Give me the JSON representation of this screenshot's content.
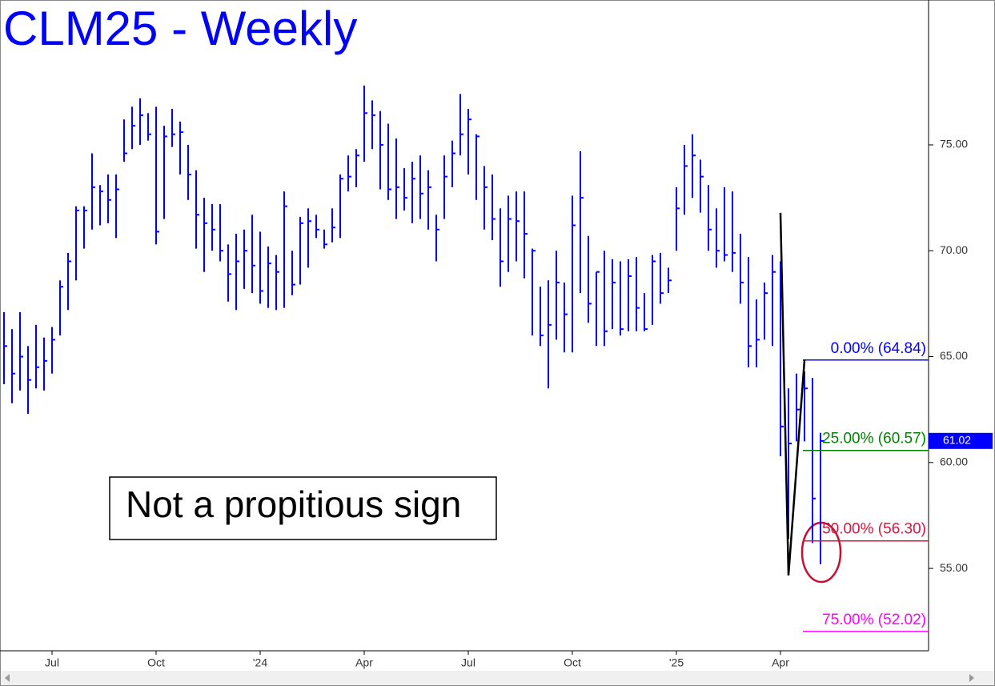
{
  "chart_data": {
    "type": "ohlc",
    "title": "CLM25 - Weekly",
    "annotation": "Not a propitious sign",
    "color": "#0000ff",
    "xlim": [
      -0.5,
      115.5
    ],
    "xticks": [
      {
        "value": 6,
        "label": "Jul"
      },
      {
        "value": 19,
        "label": "Oct"
      },
      {
        "value": 32,
        "label": "'24"
      },
      {
        "value": 45,
        "label": "Apr"
      },
      {
        "value": 58,
        "label": "Jul"
      },
      {
        "value": 71,
        "label": "Oct"
      },
      {
        "value": 84,
        "label": "'25"
      },
      {
        "value": 97,
        "label": "Apr"
      }
    ],
    "ylim": [
      51.11,
      81.84
    ],
    "yticks": [
      {
        "value": 55,
        "label": "55.00"
      },
      {
        "value": 60,
        "label": "60.00"
      },
      {
        "value": 65,
        "label": "65.00"
      },
      {
        "value": 70,
        "label": "70.00"
      },
      {
        "value": 75,
        "label": "75.00"
      }
    ],
    "high": [
      67.1,
      66.3,
      67.1,
      65.5,
      66.5,
      65.9,
      66.4,
      68.6,
      69.9,
      72.1,
      72.1,
      74.6,
      73.1,
      73.6,
      73.6,
      76.2,
      76.8,
      77.2,
      76.5,
      76.8,
      75.9,
      76.7,
      76.1,
      75.0,
      73.8,
      72.5,
      72.2,
      72.2,
      70.3,
      70.8,
      71.0,
      71.7,
      70.9,
      70.2,
      69.8,
      72.8,
      70.0,
      71.6,
      72.0,
      71.7,
      71.0,
      72.0,
      73.6,
      74.5,
      74.8,
      77.8,
      77.1,
      76.6,
      76.0,
      75.3,
      73.9,
      74.2,
      74.5,
      73.8,
      71.7,
      74.5,
      75.2,
      77.4,
      76.7,
      75.5,
      74.0,
      73.6,
      72.0,
      72.6,
      72.8,
      72.8,
      70.1,
      68.3,
      68.6,
      70.0,
      68.5,
      72.6,
      74.7,
      70.7,
      69.0,
      70.0,
      69.6,
      69.5,
      69.6,
      69.7,
      68.0,
      69.8,
      69.9,
      69.2,
      73.0,
      75.0,
      75.5,
      74.3,
      73.1,
      72.0,
      73.0,
      72.8,
      70.8,
      69.7,
      67.7,
      68.5,
      69.8,
      69.5,
      63.5,
      64.2,
      64.3,
      64.0,
      61.4
    ],
    "low": [
      63.7,
      62.8,
      63.4,
      62.3,
      63.5,
      63.4,
      64.2,
      66.0,
      67.2,
      68.6,
      70.1,
      71.0,
      71.2,
      71.3,
      70.6,
      74.2,
      74.8,
      75.0,
      75.2,
      70.3,
      71.5,
      74.9,
      73.6,
      72.4,
      70.1,
      69.0,
      70.0,
      69.5,
      67.6,
      67.2,
      68.2,
      68.0,
      67.5,
      67.3,
      67.2,
      67.3,
      67.9,
      68.4,
      69.2,
      70.6,
      70.1,
      70.4,
      70.6,
      72.8,
      73.0,
      74.2,
      74.8,
      72.9,
      72.4,
      71.5,
      71.9,
      71.3,
      71.5,
      71.0,
      69.5,
      71.5,
      73.0,
      74.5,
      73.6,
      72.4,
      71.0,
      70.5,
      68.3,
      69.0,
      69.5,
      68.7,
      66.0,
      65.5,
      63.5,
      65.8,
      65.2,
      65.2,
      68.0,
      66.6,
      65.5,
      65.5,
      66.3,
      66.0,
      66.2,
      66.2,
      66.2,
      66.5,
      67.5,
      68.0,
      70.0,
      71.7,
      72.5,
      71.8,
      70.0,
      69.2,
      69.5,
      69.0,
      67.5,
      64.5,
      64.5,
      65.8,
      65.5,
      60.3,
      56.4,
      61.0,
      61.0,
      56.2,
      55.2
    ],
    "close": [
      65.5,
      64.2,
      65.0,
      63.9,
      64.5,
      64.8,
      65.8,
      68.3,
      69.5,
      71.9,
      71.9,
      73.0,
      72.8,
      72.4,
      72.9,
      74.6,
      75.9,
      76.4,
      75.5,
      70.9,
      75.4,
      75.5,
      75.6,
      73.6,
      71.7,
      71.3,
      71.0,
      70.0,
      68.9,
      69.5,
      70.0,
      69.3,
      68.1,
      69.4,
      69.0,
      72.1,
      68.4,
      71.3,
      71.4,
      71.0,
      70.3,
      71.1,
      73.4,
      73.5,
      74.5,
      76.5,
      76.4,
      75.0,
      72.9,
      73.0,
      72.5,
      73.4,
      72.7,
      73.0,
      71.0,
      73.5,
      74.6,
      75.5,
      76.2,
      75.4,
      73.0,
      71.5,
      69.5,
      71.5,
      71.4,
      70.8,
      70.0,
      66.0,
      66.5,
      68.5,
      67.0,
      71.2,
      72.5,
      67.5,
      69.0,
      66.2,
      68.5,
      66.3,
      68.8,
      67.3,
      66.3,
      69.5,
      68.0,
      68.6,
      72.0,
      74.0,
      74.5,
      73.5,
      71.0,
      70.0,
      69.8,
      69.9,
      68.5,
      65.5,
      65.8,
      68.0,
      69.0,
      61.7,
      60.9,
      62.5,
      63.5,
      58.3,
      61.02
    ],
    "last_price": 61.02,
    "pattern_line": {
      "x": [
        97,
        98,
        100
      ],
      "y": [
        71.79,
        54.67,
        64.84
      ]
    },
    "retracements": [
      {
        "label": "0.00% (64.84)",
        "value": 64.84,
        "color": "#0000ff"
      },
      {
        "label": "25.00% (60.57)",
        "value": 60.57,
        "color": "#008000"
      },
      {
        "label": "50.00% (56.30)",
        "value": 56.3,
        "color": "#dc143c"
      },
      {
        "label": "75.00% (52.02)",
        "value": 52.02,
        "color": "#ff00ff"
      }
    ]
  }
}
